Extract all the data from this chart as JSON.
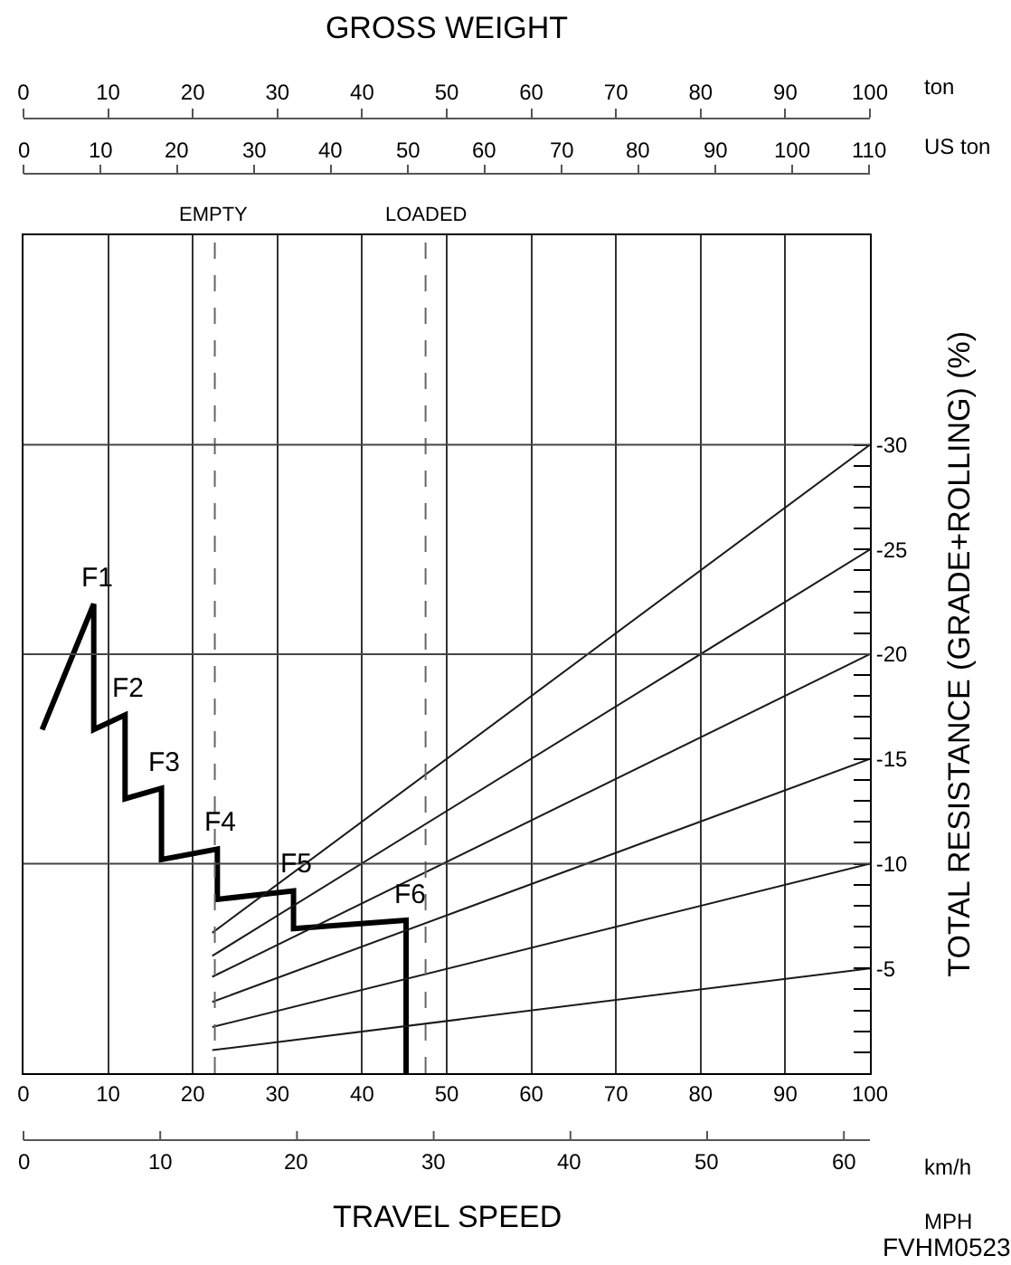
{
  "chart_data": {
    "type": "line",
    "title": "GROSS WEIGHT",
    "xlabel": "km/h",
    "x2label": "ton",
    "ylabel": "TOTAL RESISTANCE (GRADE+ROLLING) (%)",
    "xlim": [
      0,
      100
    ],
    "xticks": [
      0,
      10,
      20,
      30,
      40,
      50,
      60,
      70,
      80,
      90,
      100
    ],
    "x2lim": [
      0,
      100
    ],
    "x2ticks": [
      0,
      10,
      20,
      30,
      40,
      50,
      60,
      70,
      80,
      90,
      100
    ],
    "ylim": [
      0,
      -40
    ],
    "yticks": [
      {
        "value": -1,
        "label": null
      },
      {
        "value": -2,
        "label": null
      },
      {
        "value": -3,
        "label": null
      },
      {
        "value": -4,
        "label": null
      },
      -5,
      {
        "value": -6,
        "label": null
      },
      {
        "value": -7,
        "label": null
      },
      {
        "value": -8,
        "label": null
      },
      {
        "value": -9,
        "label": null
      },
      -10,
      {
        "value": -11,
        "label": null
      },
      {
        "value": -12,
        "label": null
      },
      {
        "value": -13,
        "label": null
      },
      {
        "value": -14,
        "label": null
      },
      -15,
      {
        "value": -16,
        "label": null
      },
      {
        "value": -17,
        "label": null
      },
      {
        "value": -18,
        "label": null
      },
      {
        "value": -19,
        "label": null
      },
      -20,
      {
        "value": -21,
        "label": null
      },
      {
        "value": -22,
        "label": null
      },
      {
        "value": -23,
        "label": null
      },
      {
        "value": -24,
        "label": null
      },
      -25,
      {
        "value": -26,
        "label": null
      },
      {
        "value": -27,
        "label": null
      },
      {
        "value": -28,
        "label": null
      },
      {
        "value": -29,
        "label": null
      },
      -30
    ],
    "grid": "x",
    "marker": "none",
    "line_style": "solid",
    "series": [
      {
        "color": "#000000",
        "x": [
          2.2,
          8.3,
          8.3,
          12.0,
          12.0,
          16.3,
          16.3,
          22.9,
          22.9,
          31.9,
          31.9,
          45.2,
          45.2
        ],
        "values": [
          -16.4,
          -22.4,
          -16.4,
          -17.1,
          -13.1,
          -13.6,
          -10.2,
          -10.7,
          -8.3,
          -8.7,
          -6.9,
          -7.3,
          0
        ]
      },
      {
        "color": "#1a1a1a",
        "x": [
          22.3,
          100
        ],
        "values": [
          -6.7,
          -30
        ]
      },
      {
        "color": "#1a1a1a",
        "x": [
          22.3,
          100
        ],
        "values": [
          -5.6,
          -25
        ]
      },
      {
        "color": "#1a1a1a",
        "x": [
          22.3,
          100
        ],
        "values": [
          -4.6,
          -20
        ]
      },
      {
        "color": "#1a1a1a",
        "x": [
          22.3,
          100
        ],
        "values": [
          -3.4,
          -15
        ]
      },
      {
        "color": "#1a1a1a",
        "x": [
          22.3,
          100
        ],
        "values": [
          -2.2,
          -10
        ]
      },
      {
        "color": "#1a1a1a",
        "x": [
          22.3,
          100
        ],
        "values": [
          -1.1,
          -5
        ]
      }
    ],
    "ref_lines": [
      {
        "axis": "x2",
        "value": 22.6,
        "label": "EMPTY",
        "color": "#666666",
        "line_style": "dashed"
      },
      {
        "axis": "x2",
        "value": 47.5,
        "label": "LOADED",
        "color": "#666666",
        "line_style": "dashed"
      },
      {
        "axis": "y",
        "value": -10,
        "color": "#444444"
      },
      {
        "axis": "y",
        "value": -20,
        "color": "#444444"
      },
      {
        "axis": "y",
        "value": -30,
        "color": "#444444"
      }
    ],
    "annotations": [
      "TRAVEL SPEED",
      "FVHM0523",
      "US ton",
      "0",
      "10",
      "20",
      "30",
      "40",
      "50",
      "60",
      "70",
      "80",
      "90",
      "100",
      "110",
      "MPH",
      "0",
      "10",
      "20",
      "30",
      "40",
      "50",
      "60",
      {
        "text": "F1",
        "x": 8.3,
        "y": -22.4
      },
      {
        "text": "F2",
        "x": 12.0,
        "y": -17.1
      },
      {
        "text": "F3",
        "x": 16.3,
        "y": -13.6
      },
      {
        "text": "F4",
        "x": 22.9,
        "y": -10.7
      },
      {
        "text": "F5",
        "x": 31.9,
        "y": -8.7
      },
      {
        "text": "F6",
        "x": 45.2,
        "y": -7.3
      }
    ]
  }
}
